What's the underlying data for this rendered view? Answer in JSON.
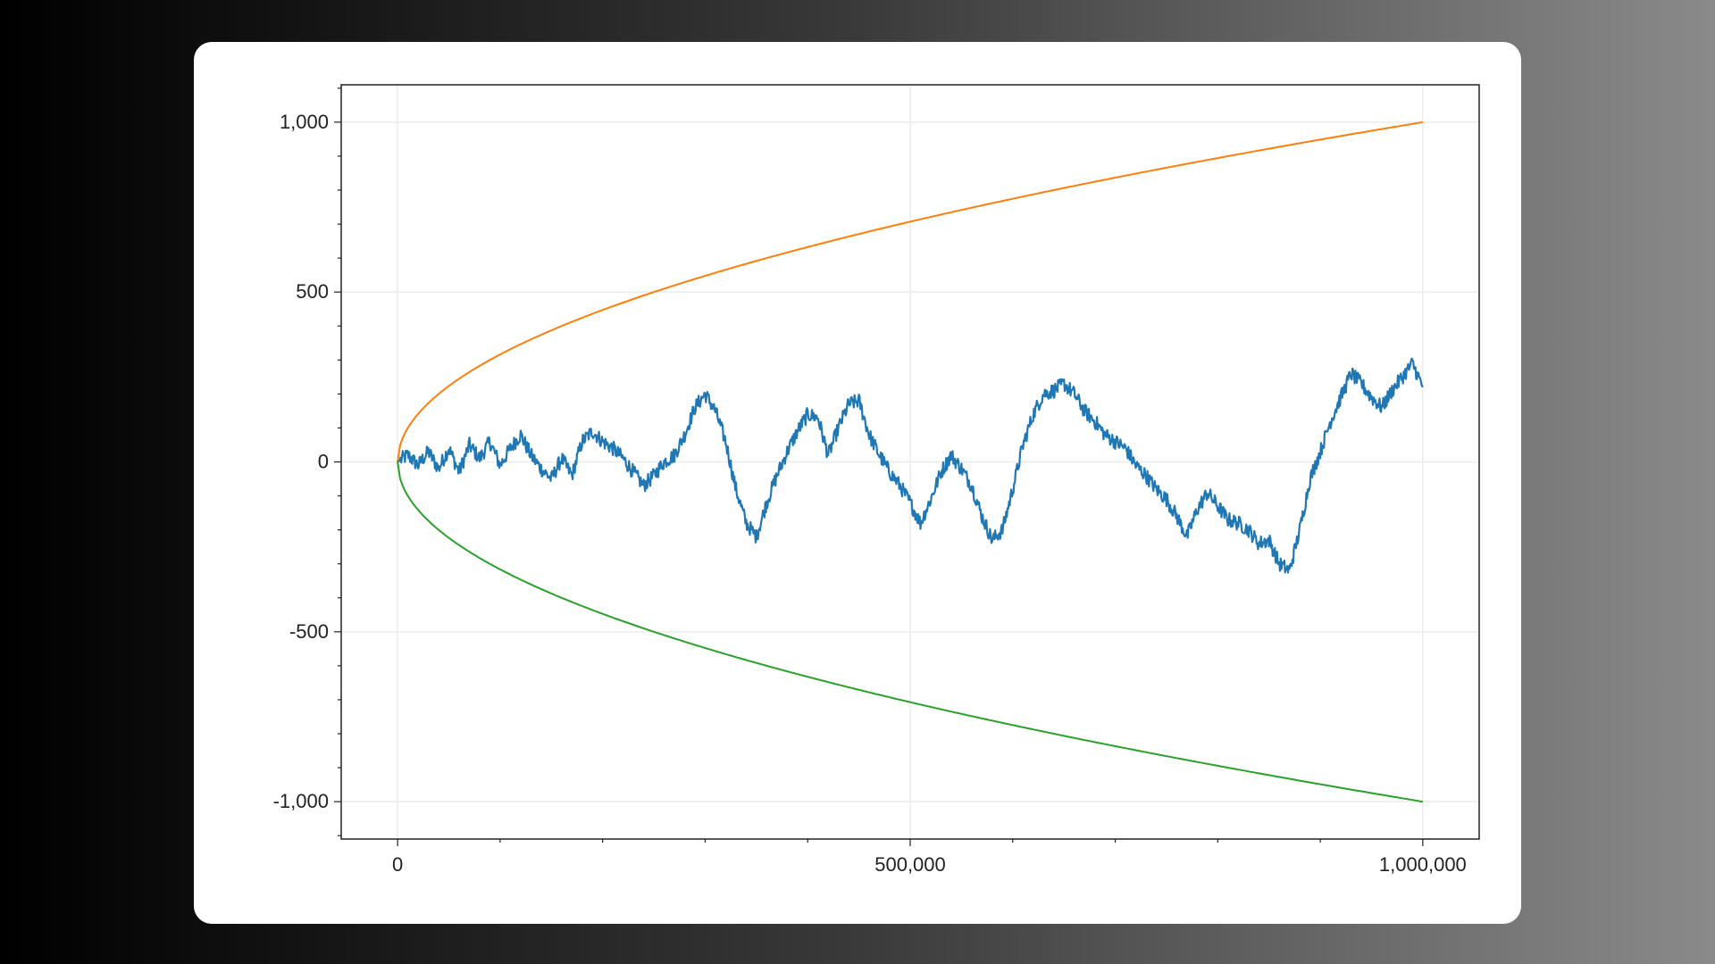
{
  "chart_data": {
    "type": "line",
    "title": "",
    "xlabel": "",
    "ylabel": "",
    "xlim": [
      -55000,
      1055000
    ],
    "ylim": [
      -1110,
      1110
    ],
    "grid": true,
    "x_ticks": [
      {
        "value": 0,
        "label": "0"
      },
      {
        "value": 500000,
        "label": "500,000"
      },
      {
        "value": 1000000,
        "label": "1,000,000"
      }
    ],
    "y_ticks": [
      {
        "value": 1000,
        "label": "1,000"
      },
      {
        "value": 500,
        "label": "500"
      },
      {
        "value": 0,
        "label": "0"
      },
      {
        "value": -500,
        "label": "-500"
      },
      {
        "value": -1000,
        "label": "-1,000"
      }
    ],
    "series": [
      {
        "color": "#ff7f0e",
        "function": "sqrt",
        "x": [
          0,
          10000,
          40000,
          90000,
          160000,
          250000,
          360000,
          490000,
          640000,
          810000,
          1000000
        ],
        "values": [
          0,
          100,
          200,
          300,
          400,
          500,
          600,
          700,
          800,
          900,
          1000
        ]
      },
      {
        "color": "#2ca02c",
        "function": "neg-sqrt",
        "x": [
          0,
          10000,
          40000,
          90000,
          160000,
          250000,
          360000,
          490000,
          640000,
          810000,
          1000000
        ],
        "values": [
          0,
          -100,
          -200,
          -300,
          -400,
          -500,
          -600,
          -700,
          -800,
          -900,
          -1000
        ]
      },
      {
        "color": "#1f77b4",
        "function": "random-walk",
        "x": [
          0,
          10000,
          20000,
          30000,
          40000,
          50000,
          60000,
          70000,
          80000,
          90000,
          100000,
          110000,
          120000,
          130000,
          140000,
          150000,
          160000,
          170000,
          180000,
          190000,
          200000,
          210000,
          220000,
          230000,
          240000,
          250000,
          260000,
          270000,
          280000,
          290000,
          300000,
          310000,
          320000,
          330000,
          340000,
          350000,
          360000,
          370000,
          380000,
          390000,
          400000,
          410000,
          420000,
          430000,
          440000,
          450000,
          460000,
          470000,
          480000,
          490000,
          500000,
          510000,
          520000,
          530000,
          540000,
          550000,
          560000,
          570000,
          580000,
          590000,
          600000,
          610000,
          620000,
          630000,
          640000,
          650000,
          660000,
          670000,
          680000,
          690000,
          700000,
          710000,
          720000,
          730000,
          740000,
          750000,
          760000,
          770000,
          780000,
          790000,
          800000,
          810000,
          820000,
          830000,
          840000,
          850000,
          860000,
          870000,
          880000,
          890000,
          900000,
          910000,
          920000,
          930000,
          940000,
          950000,
          960000,
          970000,
          980000,
          990000,
          1000000
        ],
        "values": [
          0,
          20,
          -10,
          30,
          -20,
          40,
          -30,
          50,
          10,
          60,
          -10,
          40,
          80,
          20,
          -20,
          -50,
          10,
          -40,
          60,
          90,
          60,
          40,
          10,
          -30,
          -70,
          -40,
          0,
          20,
          80,
          160,
          200,
          150,
          60,
          -80,
          -180,
          -220,
          -120,
          -40,
          30,
          90,
          140,
          130,
          20,
          100,
          170,
          180,
          80,
          20,
          -30,
          -70,
          -120,
          -180,
          -110,
          -30,
          20,
          -20,
          -70,
          -160,
          -230,
          -200,
          -80,
          50,
          140,
          200,
          210,
          230,
          200,
          150,
          120,
          80,
          60,
          40,
          -10,
          -40,
          -80,
          -110,
          -160,
          -220,
          -140,
          -90,
          -130,
          -170,
          -180,
          -200,
          -240,
          -230,
          -300,
          -320,
          -200,
          -50,
          30,
          120,
          190,
          260,
          230,
          190,
          160,
          210,
          250,
          290,
          220
        ]
      }
    ]
  }
}
